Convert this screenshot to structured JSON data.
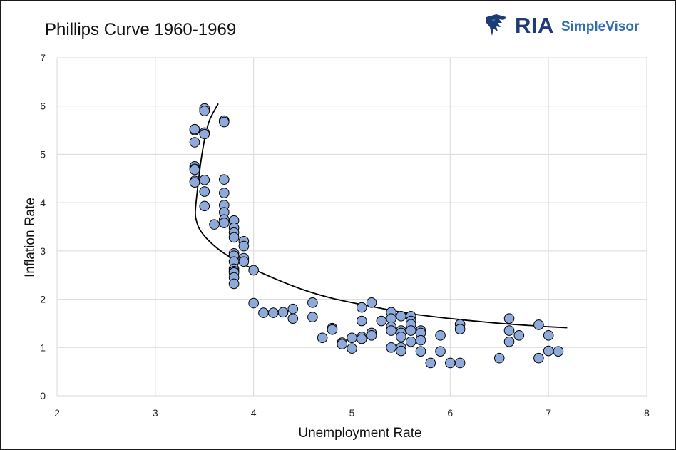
{
  "header": {
    "title": "Phillips Curve 1960-1969",
    "logo_main": "RIA",
    "logo_sub": "SimpleVisor"
  },
  "colors": {
    "point_fill": "#8eaadb",
    "point_stroke": "#000000",
    "grid": "#d9d9d9",
    "curve": "#000000",
    "logo_dark": "#1f3b73",
    "logo_light": "#2f6db5"
  },
  "chart_data": {
    "type": "scatter",
    "title": "Phillips Curve 1960-1969",
    "xlabel": "Unemployment Rate",
    "ylabel": "Inflation Rate",
    "xlim": [
      2,
      8
    ],
    "ylim": [
      0,
      7
    ],
    "xticks": [
      "2",
      "3",
      "4",
      "5",
      "6",
      "7",
      "8"
    ],
    "yticks": [
      "0",
      "1",
      "2",
      "3",
      "4",
      "5",
      "6",
      "7"
    ],
    "grid": true,
    "legend": "none",
    "points": [
      [
        3.5,
        5.95
      ],
      [
        3.5,
        5.9
      ],
      [
        3.4,
        5.5
      ],
      [
        3.4,
        5.52
      ],
      [
        3.5,
        5.45
      ],
      [
        3.5,
        5.42
      ],
      [
        3.4,
        5.25
      ],
      [
        3.7,
        5.7
      ],
      [
        3.7,
        5.67
      ],
      [
        3.4,
        4.75
      ],
      [
        3.4,
        4.7
      ],
      [
        3.4,
        4.68
      ],
      [
        3.4,
        4.45
      ],
      [
        3.4,
        4.42
      ],
      [
        3.5,
        4.47
      ],
      [
        3.5,
        4.23
      ],
      [
        3.5,
        3.93
      ],
      [
        3.6,
        3.55
      ],
      [
        3.7,
        4.48
      ],
      [
        3.7,
        4.2
      ],
      [
        3.7,
        3.95
      ],
      [
        3.7,
        3.8
      ],
      [
        3.7,
        3.65
      ],
      [
        3.7,
        3.58
      ],
      [
        3.8,
        3.63
      ],
      [
        3.8,
        3.48
      ],
      [
        3.8,
        3.38
      ],
      [
        3.8,
        3.28
      ],
      [
        3.8,
        2.95
      ],
      [
        3.8,
        2.9
      ],
      [
        3.8,
        2.78
      ],
      [
        3.8,
        2.63
      ],
      [
        3.8,
        2.58
      ],
      [
        3.8,
        2.55
      ],
      [
        3.8,
        2.45
      ],
      [
        3.8,
        2.32
      ],
      [
        3.9,
        3.2
      ],
      [
        3.9,
        3.1
      ],
      [
        3.9,
        2.85
      ],
      [
        3.9,
        2.78
      ],
      [
        4.0,
        2.6
      ],
      [
        4.0,
        1.92
      ],
      [
        4.1,
        1.72
      ],
      [
        4.2,
        1.72
      ],
      [
        4.3,
        1.73
      ],
      [
        4.4,
        1.8
      ],
      [
        4.4,
        1.6
      ],
      [
        4.6,
        1.93
      ],
      [
        4.6,
        1.63
      ],
      [
        4.7,
        1.2
      ],
      [
        4.8,
        1.4
      ],
      [
        4.8,
        1.37
      ],
      [
        4.9,
        1.1
      ],
      [
        4.9,
        1.07
      ],
      [
        5.0,
        1.2
      ],
      [
        5.0,
        0.98
      ],
      [
        5.1,
        1.83
      ],
      [
        5.1,
        1.55
      ],
      [
        5.1,
        1.22
      ],
      [
        5.1,
        1.18
      ],
      [
        5.2,
        1.93
      ],
      [
        5.2,
        1.3
      ],
      [
        5.2,
        1.25
      ],
      [
        5.3,
        1.55
      ],
      [
        5.4,
        1.73
      ],
      [
        5.4,
        1.6
      ],
      [
        5.4,
        1.43
      ],
      [
        5.4,
        1.35
      ],
      [
        5.4,
        1.0
      ],
      [
        5.5,
        1.65
      ],
      [
        5.5,
        1.35
      ],
      [
        5.5,
        1.3
      ],
      [
        5.5,
        1.22
      ],
      [
        5.5,
        1.0
      ],
      [
        5.5,
        0.93
      ],
      [
        5.6,
        1.65
      ],
      [
        5.6,
        1.55
      ],
      [
        5.6,
        1.48
      ],
      [
        5.6,
        1.35
      ],
      [
        5.6,
        1.12
      ],
      [
        5.7,
        1.35
      ],
      [
        5.7,
        1.3
      ],
      [
        5.7,
        1.15
      ],
      [
        5.7,
        0.92
      ],
      [
        5.8,
        0.68
      ],
      [
        5.9,
        1.25
      ],
      [
        5.9,
        0.92
      ],
      [
        6.0,
        0.68
      ],
      [
        6.1,
        1.48
      ],
      [
        6.1,
        1.38
      ],
      [
        6.1,
        0.68
      ],
      [
        6.5,
        0.78
      ],
      [
        6.6,
        1.6
      ],
      [
        6.6,
        1.35
      ],
      [
        6.6,
        1.12
      ],
      [
        6.7,
        1.25
      ],
      [
        6.9,
        1.47
      ],
      [
        6.9,
        0.78
      ],
      [
        7.0,
        1.25
      ],
      [
        7.0,
        0.93
      ],
      [
        7.1,
        0.92
      ]
    ],
    "trendline": [
      [
        3.64,
        6.05
      ],
      [
        3.55,
        5.7
      ],
      [
        3.5,
        5.3
      ],
      [
        3.46,
        4.8
      ],
      [
        3.43,
        4.3
      ],
      [
        3.41,
        3.9
      ],
      [
        3.41,
        3.7
      ],
      [
        3.45,
        3.45
      ],
      [
        3.55,
        3.2
      ],
      [
        3.7,
        2.95
      ],
      [
        3.9,
        2.72
      ],
      [
        4.2,
        2.44
      ],
      [
        4.5,
        2.2
      ],
      [
        4.8,
        2.02
      ],
      [
        5.2,
        1.85
      ],
      [
        5.6,
        1.7
      ],
      [
        6.0,
        1.6
      ],
      [
        6.5,
        1.5
      ],
      [
        7.0,
        1.43
      ],
      [
        7.19,
        1.41
      ]
    ]
  }
}
